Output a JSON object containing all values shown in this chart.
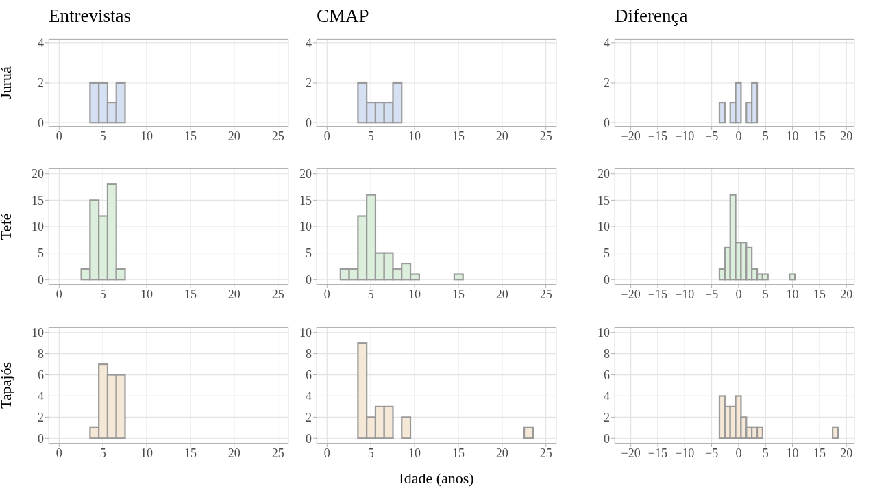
{
  "chart_data": [
    {
      "type": "histogram",
      "title": "Entrevistas",
      "ylabel": "Juruá",
      "color": "#d6e0f3",
      "bins": [
        0.5,
        1.5,
        2.5,
        3.5,
        4.5,
        5.5,
        6.5,
        7.5,
        8.5,
        9.5,
        10.5,
        11.5,
        12.5,
        13.5,
        14.5,
        15.5,
        16.5,
        17.5,
        18.5,
        19.5,
        20.5,
        21.5,
        22.5,
        23.5,
        24.5
      ],
      "values": [
        0,
        0,
        0,
        2,
        2,
        1,
        2,
        0,
        0,
        0,
        0,
        0,
        0,
        0,
        0,
        0,
        0,
        0,
        0,
        0,
        0,
        0,
        0,
        0
      ],
      "xlim": [
        -1.2,
        26.2
      ],
      "xticks": [
        0,
        5,
        10,
        15,
        20,
        25
      ],
      "ylim": [
        -0.2,
        4.2
      ],
      "yticks": [
        0,
        2,
        4
      ],
      "grid": true
    },
    {
      "type": "histogram",
      "title": "CMAP",
      "color": "#d6e0f3",
      "bins": [
        0.5,
        1.5,
        2.5,
        3.5,
        4.5,
        5.5,
        6.5,
        7.5,
        8.5,
        9.5,
        10.5,
        11.5,
        12.5,
        13.5,
        14.5,
        15.5,
        16.5,
        17.5,
        18.5,
        19.5,
        20.5,
        21.5,
        22.5,
        23.5,
        24.5
      ],
      "values": [
        0,
        0,
        0,
        2,
        1,
        1,
        1,
        2,
        0,
        0,
        0,
        0,
        0,
        0,
        0,
        0,
        0,
        0,
        0,
        0,
        0,
        0,
        0,
        0
      ],
      "xlim": [
        -1.2,
        26.2
      ],
      "xticks": [
        0,
        5,
        10,
        15,
        20,
        25
      ],
      "ylim": [
        -0.2,
        4.2
      ],
      "yticks": [
        0,
        2,
        4
      ],
      "grid": true
    },
    {
      "type": "histogram",
      "title": "Diferença",
      "color": "#d6e0f3",
      "bins": [
        -19.5,
        -18.5,
        -17.5,
        -16.5,
        -15.5,
        -14.5,
        -13.5,
        -12.5,
        -11.5,
        -10.5,
        -9.5,
        -8.5,
        -7.5,
        -6.5,
        -5.5,
        -4.5,
        -3.5,
        -2.5,
        -1.5,
        -0.5,
        0.5,
        1.5,
        2.5,
        3.5,
        4.5,
        5.5,
        6.5,
        7.5,
        8.5,
        9.5,
        10.5,
        11.5,
        12.5,
        13.5,
        14.5,
        15.5,
        16.5,
        17.5,
        18.5,
        19.5
      ],
      "values": [
        0,
        0,
        0,
        0,
        0,
        0,
        0,
        0,
        0,
        0,
        0,
        0,
        0,
        0,
        0,
        0,
        1,
        0,
        1,
        2,
        0,
        1,
        2,
        0,
        0,
        0,
        0,
        0,
        0,
        0,
        0,
        0,
        0,
        0,
        0,
        0,
        0,
        0,
        0
      ],
      "xlim": [
        -23,
        21.5
      ],
      "xticks": [
        {
          "value": -20,
          "label": "−20"
        },
        {
          "value": -15,
          "label": "−15"
        },
        {
          "value": -10,
          "label": "−10"
        },
        {
          "value": -5,
          "label": "−5"
        },
        0,
        5,
        10,
        15,
        20
      ],
      "ylim": [
        -0.2,
        4.2
      ],
      "yticks": [
        0,
        2,
        4
      ],
      "grid": true
    },
    {
      "type": "histogram",
      "ylabel": "Tefé",
      "color": "#dcefdc",
      "bins": [
        0.5,
        1.5,
        2.5,
        3.5,
        4.5,
        5.5,
        6.5,
        7.5,
        8.5,
        9.5,
        10.5,
        11.5,
        12.5,
        13.5,
        14.5,
        15.5,
        16.5,
        17.5,
        18.5,
        19.5,
        20.5,
        21.5,
        22.5,
        23.5,
        24.5
      ],
      "values": [
        0,
        0,
        2,
        15,
        12,
        18,
        2,
        0,
        0,
        0,
        0,
        0,
        0,
        0,
        0,
        0,
        0,
        0,
        0,
        0,
        0,
        0,
        0,
        0
      ],
      "xlim": [
        -1.2,
        26.2
      ],
      "xticks": [
        0,
        5,
        10,
        15,
        20,
        25
      ],
      "ylim": [
        -1,
        21
      ],
      "yticks": [
        0,
        5,
        10,
        15,
        20
      ],
      "grid": true
    },
    {
      "type": "histogram",
      "color": "#dcefdc",
      "bins": [
        0.5,
        1.5,
        2.5,
        3.5,
        4.5,
        5.5,
        6.5,
        7.5,
        8.5,
        9.5,
        10.5,
        11.5,
        12.5,
        13.5,
        14.5,
        15.5,
        16.5,
        17.5,
        18.5,
        19.5,
        20.5,
        21.5,
        22.5,
        23.5,
        24.5
      ],
      "values": [
        0,
        2,
        2,
        12,
        16,
        5,
        5,
        2,
        3,
        1,
        0,
        0,
        0,
        0,
        1,
        0,
        0,
        0,
        0,
        0,
        0,
        0,
        0,
        0
      ],
      "xlim": [
        -1.2,
        26.2
      ],
      "xticks": [
        0,
        5,
        10,
        15,
        20,
        25
      ],
      "ylim": [
        -1,
        21
      ],
      "yticks": [
        0,
        5,
        10,
        15,
        20
      ],
      "grid": true
    },
    {
      "type": "histogram",
      "color": "#dcefdc",
      "bins": [
        -19.5,
        -18.5,
        -17.5,
        -16.5,
        -15.5,
        -14.5,
        -13.5,
        -12.5,
        -11.5,
        -10.5,
        -9.5,
        -8.5,
        -7.5,
        -6.5,
        -5.5,
        -4.5,
        -3.5,
        -2.5,
        -1.5,
        -0.5,
        0.5,
        1.5,
        2.5,
        3.5,
        4.5,
        5.5,
        6.5,
        7.5,
        8.5,
        9.5,
        10.5,
        11.5,
        12.5,
        13.5,
        14.5,
        15.5,
        16.5,
        17.5,
        18.5,
        19.5
      ],
      "values": [
        0,
        0,
        0,
        0,
        0,
        0,
        0,
        0,
        0,
        0,
        0,
        0,
        0,
        0,
        0,
        0,
        2,
        6,
        16,
        7,
        7,
        6,
        2,
        1,
        1,
        0,
        0,
        0,
        0,
        1,
        0,
        0,
        0,
        0,
        0,
        0,
        0,
        0,
        0
      ],
      "xlim": [
        -23,
        21.5
      ],
      "xticks": [
        {
          "value": -20,
          "label": "−20"
        },
        {
          "value": -15,
          "label": "−15"
        },
        {
          "value": -10,
          "label": "−10"
        },
        {
          "value": -5,
          "label": "−5"
        },
        0,
        5,
        10,
        15,
        20
      ],
      "ylim": [
        -1,
        21
      ],
      "yticks": [
        0,
        5,
        10,
        15,
        20
      ],
      "grid": true
    },
    {
      "type": "histogram",
      "ylabel": "Tapajós",
      "color": "#f5e8d6",
      "bins": [
        0.5,
        1.5,
        2.5,
        3.5,
        4.5,
        5.5,
        6.5,
        7.5,
        8.5,
        9.5,
        10.5,
        11.5,
        12.5,
        13.5,
        14.5,
        15.5,
        16.5,
        17.5,
        18.5,
        19.5,
        20.5,
        21.5,
        22.5,
        23.5,
        24.5
      ],
      "values": [
        0,
        0,
        0,
        1,
        7,
        6,
        6,
        0,
        0,
        0,
        0,
        0,
        0,
        0,
        0,
        0,
        0,
        0,
        0,
        0,
        0,
        0,
        0,
        0
      ],
      "xlim": [
        -1.2,
        26.2
      ],
      "xticks": [
        0,
        5,
        10,
        15,
        20,
        25
      ],
      "ylim": [
        -0.5,
        10.5
      ],
      "yticks": [
        0,
        2,
        4,
        6,
        8,
        10
      ],
      "grid": true
    },
    {
      "type": "histogram",
      "xlabel": "Idade (anos)",
      "color": "#f5e8d6",
      "bins": [
        0.5,
        1.5,
        2.5,
        3.5,
        4.5,
        5.5,
        6.5,
        7.5,
        8.5,
        9.5,
        10.5,
        11.5,
        12.5,
        13.5,
        14.5,
        15.5,
        16.5,
        17.5,
        18.5,
        19.5,
        20.5,
        21.5,
        22.5,
        23.5,
        24.5
      ],
      "values": [
        0,
        0,
        0,
        9,
        2,
        3,
        3,
        0,
        2,
        0,
        0,
        0,
        0,
        0,
        0,
        0,
        0,
        0,
        0,
        0,
        0,
        0,
        1,
        0
      ],
      "xlim": [
        -1.2,
        26.2
      ],
      "xticks": [
        0,
        5,
        10,
        15,
        20,
        25
      ],
      "ylim": [
        -0.5,
        10.5
      ],
      "yticks": [
        0,
        2,
        4,
        6,
        8,
        10
      ],
      "grid": true
    },
    {
      "type": "histogram",
      "color": "#f5e8d6",
      "bins": [
        -19.5,
        -18.5,
        -17.5,
        -16.5,
        -15.5,
        -14.5,
        -13.5,
        -12.5,
        -11.5,
        -10.5,
        -9.5,
        -8.5,
        -7.5,
        -6.5,
        -5.5,
        -4.5,
        -3.5,
        -2.5,
        -1.5,
        -0.5,
        0.5,
        1.5,
        2.5,
        3.5,
        4.5,
        5.5,
        6.5,
        7.5,
        8.5,
        9.5,
        10.5,
        11.5,
        12.5,
        13.5,
        14.5,
        15.5,
        16.5,
        17.5,
        18.5,
        19.5
      ],
      "values": [
        0,
        0,
        0,
        0,
        0,
        0,
        0,
        0,
        0,
        0,
        0,
        0,
        0,
        0,
        0,
        0,
        4,
        3,
        3,
        4,
        2,
        1,
        1,
        1,
        0,
        0,
        0,
        0,
        0,
        0,
        0,
        0,
        0,
        0,
        0,
        0,
        0,
        1,
        0
      ],
      "xlim": [
        -23,
        21.5
      ],
      "xticks": [
        {
          "value": -20,
          "label": "−20"
        },
        {
          "value": -15,
          "label": "−15"
        },
        {
          "value": -10,
          "label": "−10"
        },
        {
          "value": -5,
          "label": "−5"
        },
        0,
        5,
        10,
        15,
        20
      ],
      "ylim": [
        -0.5,
        10.5
      ],
      "yticks": [
        0,
        2,
        4,
        6,
        8,
        10
      ],
      "grid": true
    }
  ]
}
